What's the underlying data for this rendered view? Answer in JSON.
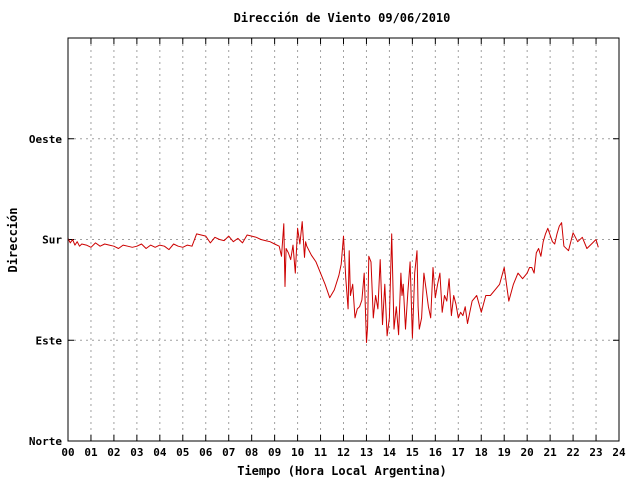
{
  "chart_data": {
    "type": "line",
    "title": "Dirección de Viento 09/06/2010",
    "xlabel": "Tiempo (Hora Local Argentina)",
    "ylabel": "Dirección",
    "xlim": [
      0,
      24
    ],
    "ylim": [
      0,
      360
    ],
    "x_ticks": [
      "00",
      "01",
      "02",
      "03",
      "04",
      "05",
      "06",
      "07",
      "08",
      "09",
      "10",
      "11",
      "12",
      "13",
      "14",
      "15",
      "16",
      "17",
      "18",
      "19",
      "20",
      "21",
      "22",
      "23",
      "24"
    ],
    "y_ticks": [
      {
        "value": 0,
        "label": "Norte"
      },
      {
        "value": 90,
        "label": "Este"
      },
      {
        "value": 180,
        "label": "Sur"
      },
      {
        "value": 270,
        "label": "Oeste"
      }
    ],
    "grid": true,
    "series_color": "#cc0000",
    "series": [
      {
        "x": [
          0.0,
          0.1,
          0.2,
          0.3,
          0.4,
          0.5,
          0.6,
          0.8,
          1.0,
          1.2,
          1.4,
          1.6,
          1.8,
          2.0,
          2.2,
          2.4,
          2.6,
          2.8,
          3.0,
          3.2,
          3.4,
          3.6,
          3.8,
          4.0,
          4.2,
          4.4,
          4.6,
          4.8,
          5.0,
          5.2,
          5.4,
          5.6,
          5.8,
          6.0,
          6.2,
          6.4,
          6.6,
          6.8,
          7.0,
          7.2,
          7.4,
          7.6,
          7.8,
          8.0,
          8.2,
          8.4,
          8.6,
          8.8,
          9.0,
          9.2,
          9.3,
          9.4,
          9.45,
          9.5,
          9.6,
          9.7,
          9.8,
          9.9,
          10.0,
          10.1,
          10.2,
          10.3,
          10.35,
          10.4,
          10.5,
          10.6,
          10.8,
          11.0,
          11.2,
          11.4,
          11.6,
          11.8,
          11.9,
          12.0,
          12.1,
          12.2,
          12.25,
          12.3,
          12.4,
          12.5,
          12.6,
          12.7,
          12.8,
          12.9,
          13.0,
          13.05,
          13.1,
          13.2,
          13.3,
          13.4,
          13.5,
          13.6,
          13.7,
          13.8,
          13.9,
          14.0,
          14.1,
          14.2,
          14.3,
          14.4,
          14.5,
          14.55,
          14.6,
          14.7,
          14.8,
          14.9,
          15.0,
          15.1,
          15.2,
          15.25,
          15.3,
          15.4,
          15.5,
          15.6,
          15.7,
          15.8,
          15.9,
          16.0,
          16.1,
          16.2,
          16.3,
          16.4,
          16.5,
          16.6,
          16.7,
          16.8,
          16.9,
          17.0,
          17.1,
          17.2,
          17.3,
          17.4,
          17.5,
          17.6,
          17.8,
          18.0,
          18.2,
          18.4,
          18.6,
          18.8,
          19.0,
          19.2,
          19.4,
          19.6,
          19.8,
          20.0,
          20.1,
          20.2,
          20.3,
          20.4,
          20.5,
          20.6,
          20.7,
          20.8,
          20.9,
          21.0,
          21.1,
          21.2,
          21.3,
          21.4,
          21.5,
          21.6,
          21.8,
          22.0,
          22.2,
          22.4,
          22.6,
          22.8,
          23.0,
          23.1
        ],
        "values": [
          181,
          177,
          180,
          175,
          178,
          174,
          176,
          175,
          173,
          177,
          174,
          176,
          175,
          174,
          172,
          175,
          174,
          173,
          174,
          176,
          172,
          175,
          173,
          175,
          174,
          171,
          176,
          174,
          173,
          175,
          174,
          185,
          184,
          183,
          177,
          182,
          180,
          179,
          183,
          178,
          181,
          177,
          184,
          183,
          182,
          180,
          179,
          178,
          176,
          174,
          165,
          194,
          138,
          172,
          168,
          162,
          175,
          150,
          190,
          176,
          196,
          164,
          178,
          174,
          170,
          166,
          160,
          150,
          140,
          128,
          135,
          148,
          158,
          183,
          145,
          118,
          170,
          130,
          140,
          110,
          118,
          120,
          126,
          150,
          88,
          102,
          165,
          160,
          110,
          130,
          118,
          162,
          104,
          140,
          94,
          110,
          185,
          100,
          120,
          95,
          150,
          130,
          140,
          100,
          132,
          160,
          92,
          150,
          170,
          120,
          100,
          110,
          150,
          135,
          120,
          110,
          155,
          128,
          140,
          150,
          115,
          130,
          125,
          145,
          112,
          130,
          122,
          110,
          115,
          112,
          120,
          105,
          115,
          125,
          130,
          115,
          130,
          130,
          135,
          140,
          155,
          125,
          140,
          150,
          145,
          150,
          155,
          155,
          150,
          168,
          172,
          165,
          178,
          185,
          190,
          184,
          178,
          176,
          185,
          192,
          195,
          174,
          170,
          186,
          178,
          182,
          172,
          176,
          180,
          173
        ]
      }
    ]
  }
}
